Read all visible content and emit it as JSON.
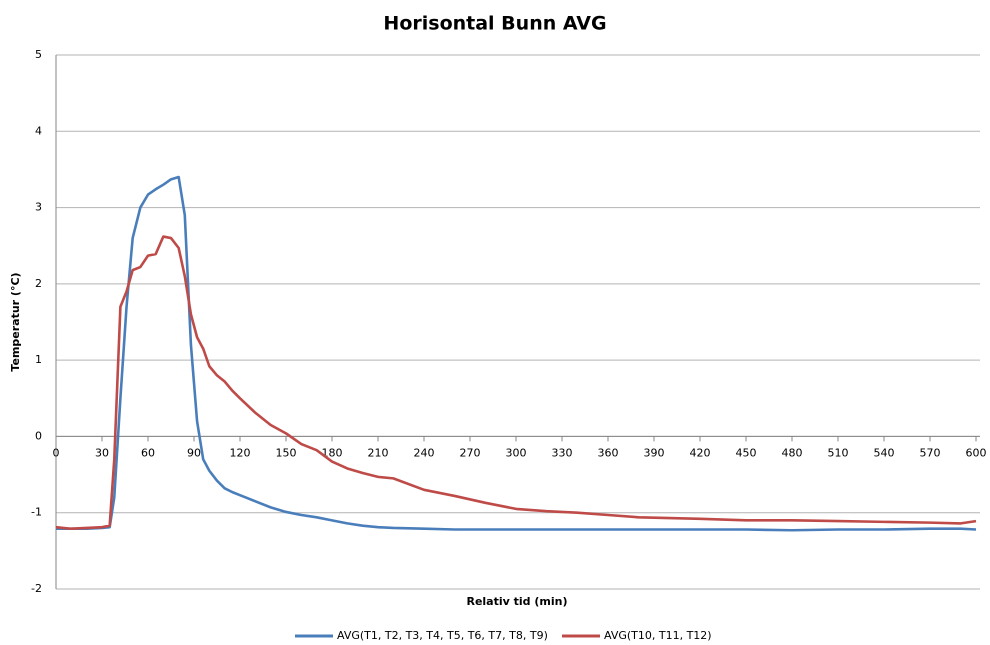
{
  "chart_data": {
    "type": "line",
    "title": "Horisontal Bunn AVG",
    "x_label": "Relativ tid (min)",
    "y_label": "Temperatur (°C)",
    "x": [
      0,
      10,
      20,
      30,
      35,
      38,
      42,
      46,
      50,
      55,
      60,
      65,
      70,
      75,
      80,
      84,
      88,
      92,
      96,
      100,
      105,
      110,
      115,
      120,
      130,
      140,
      150,
      160,
      170,
      180,
      190,
      200,
      210,
      220,
      240,
      260,
      280,
      300,
      320,
      340,
      360,
      380,
      400,
      420,
      450,
      480,
      510,
      540,
      570,
      590,
      600
    ],
    "series": [
      {
        "name": "AVG(T1, T2, T3, T4, T5, T6, T7, T8, T9)",
        "color": "#4a7ebb",
        "values": [
          -1.21,
          -1.21,
          -1.21,
          -1.2,
          -1.19,
          -0.8,
          0.5,
          1.7,
          2.6,
          3.0,
          3.17,
          3.24,
          3.3,
          3.37,
          3.4,
          2.9,
          1.2,
          0.2,
          -0.3,
          -0.45,
          -0.58,
          -0.68,
          -0.73,
          -0.77,
          -0.85,
          -0.93,
          -0.99,
          -1.03,
          -1.06,
          -1.1,
          -1.14,
          -1.17,
          -1.19,
          -1.2,
          -1.21,
          -1.22,
          -1.22,
          -1.22,
          -1.22,
          -1.22,
          -1.22,
          -1.22,
          -1.22,
          -1.22,
          -1.22,
          -1.23,
          -1.22,
          -1.22,
          -1.21,
          -1.21,
          -1.22
        ]
      },
      {
        "name": "AVG(T10, T11, T12)",
        "color": "#be4b48",
        "values": [
          -1.19,
          -1.21,
          -1.2,
          -1.19,
          -1.17,
          -0.3,
          1.7,
          1.9,
          2.18,
          2.22,
          2.37,
          2.39,
          2.62,
          2.6,
          2.47,
          2.1,
          1.6,
          1.3,
          1.15,
          0.92,
          0.8,
          0.72,
          0.6,
          0.5,
          0.31,
          0.15,
          0.04,
          -0.1,
          -0.18,
          -0.33,
          -0.42,
          -0.48,
          -0.53,
          -0.55,
          -0.7,
          -0.78,
          -0.87,
          -0.95,
          -0.98,
          -1.0,
          -1.03,
          -1.06,
          -1.07,
          -1.08,
          -1.1,
          -1.1,
          -1.11,
          -1.12,
          -1.13,
          -1.14,
          -1.11
        ]
      }
    ],
    "xlim": [
      0,
      600
    ],
    "xticks": [
      0,
      30,
      60,
      90,
      120,
      150,
      180,
      210,
      240,
      270,
      300,
      330,
      360,
      390,
      420,
      450,
      480,
      510,
      540,
      570,
      600
    ],
    "ylim": [
      -2,
      5
    ],
    "yticks": [
      -2,
      -1,
      0,
      1,
      2,
      3,
      4,
      5
    ],
    "grid": true,
    "legend": "bottom"
  }
}
